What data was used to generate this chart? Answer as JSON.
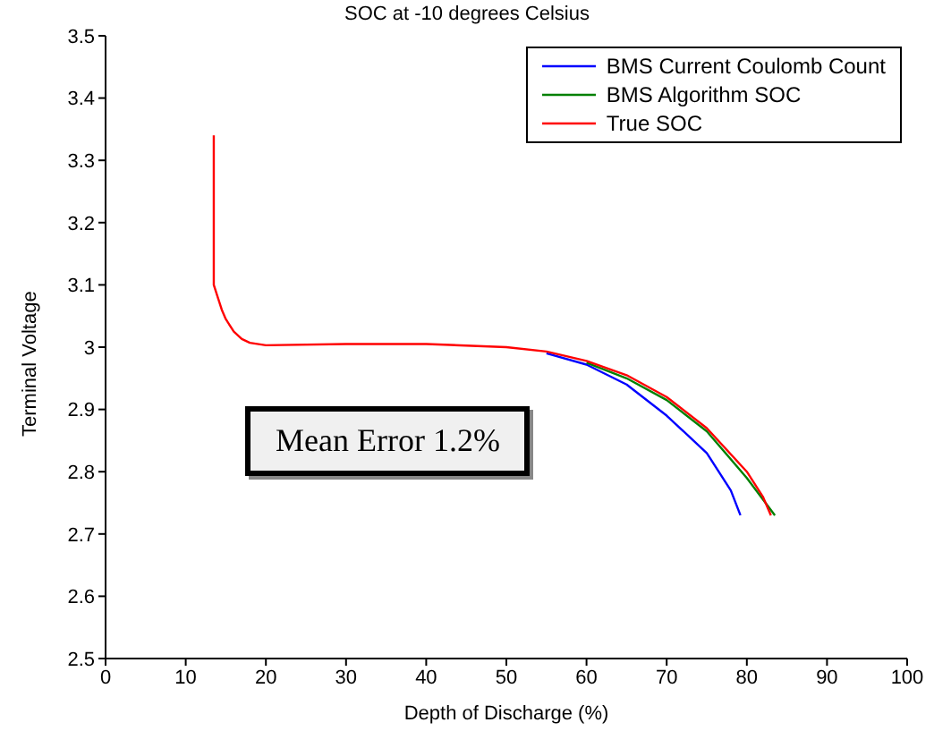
{
  "chart_data": {
    "type": "line",
    "title": "SOC at -10 degrees Celsius",
    "xlabel": "Depth of Discharge (%)",
    "ylabel": "Terminal Voltage",
    "xlim": [
      0,
      100
    ],
    "xticks": [
      0,
      10,
      20,
      30,
      40,
      50,
      60,
      70,
      80,
      90,
      100
    ],
    "ylim": [
      2.5,
      3.5
    ],
    "yticks": [
      2.5,
      2.6,
      2.7,
      2.8,
      2.9,
      3,
      3.1,
      3.2,
      3.3,
      3.4,
      3.5
    ],
    "legend": "top right",
    "line_style": "solid",
    "marker": "none",
    "annotations": [
      "Mean Error 1.2%"
    ],
    "series": [
      {
        "name": "BMS Current Coulomb Count",
        "color": "#0000ff",
        "x": [
          55,
          60,
          65,
          70,
          75,
          78,
          79.2
        ],
        "values": [
          2.99,
          2.972,
          2.94,
          2.89,
          2.83,
          2.77,
          2.73
        ]
      },
      {
        "name": "BMS Algorithm SOC",
        "color": "#008000",
        "x": [
          60,
          65,
          70,
          75,
          80,
          83.5
        ],
        "values": [
          2.975,
          2.95,
          2.915,
          2.865,
          2.79,
          2.73
        ]
      },
      {
        "name": "True SOC",
        "color": "#ff0000",
        "x": [
          13.5,
          13.5,
          14,
          14.5,
          15,
          16,
          17,
          18,
          20,
          30,
          40,
          50,
          55,
          60,
          65,
          70,
          75,
          80,
          82,
          83
        ],
        "values": [
          3.34,
          3.1,
          3.08,
          3.06,
          3.045,
          3.025,
          3.013,
          3.007,
          3.003,
          3.005,
          3.005,
          3.0,
          2.993,
          2.978,
          2.955,
          2.92,
          2.87,
          2.8,
          2.76,
          2.73
        ]
      }
    ]
  }
}
